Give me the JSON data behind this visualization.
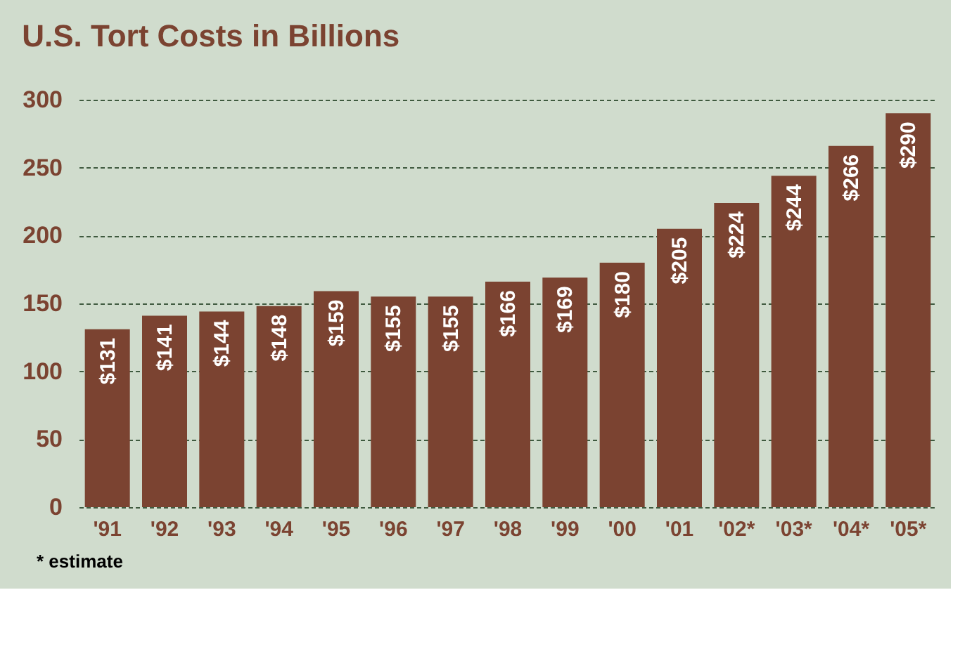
{
  "chart_data": {
    "type": "bar",
    "title": "U.S. Tort Costs in Billions",
    "categories": [
      "'91",
      "'92",
      "'93",
      "'94",
      "'95",
      "'96",
      "'97",
      "'98",
      "'99",
      "'00",
      "'01",
      "'02*",
      "'03*",
      "'04*",
      "'05*"
    ],
    "values": [
      131,
      141,
      144,
      148,
      159,
      155,
      155,
      166,
      169,
      180,
      205,
      224,
      244,
      266,
      290
    ],
    "value_labels": [
      "$131",
      "$141",
      "$144",
      "$148",
      "$159",
      "$155",
      "$155",
      "$166",
      "$169",
      "$180",
      "$205",
      "$224",
      "$244",
      "$266",
      "$290"
    ],
    "color": "#7b4331",
    "ylim": [
      0,
      300
    ],
    "yticks": [
      0,
      50,
      100,
      150,
      200,
      250,
      300
    ],
    "grid": "y",
    "annotations": [
      "* estimate"
    ]
  }
}
